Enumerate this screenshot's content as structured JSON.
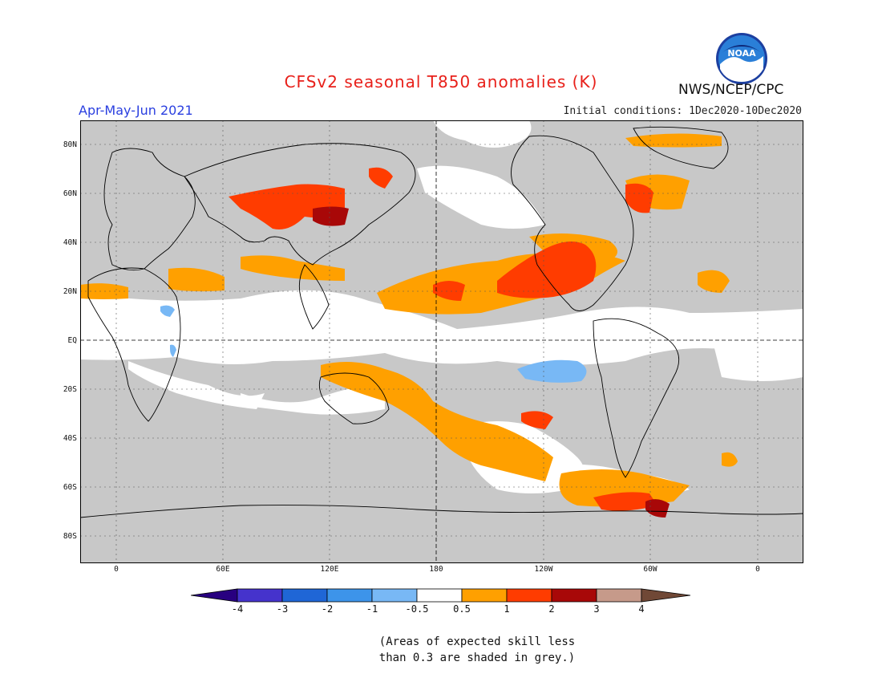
{
  "title": "CFSv2 seasonal T850 anomalies (K)",
  "period": "Apr-May-Jun 2021",
  "initial_conditions": "Initial conditions: 1Dec2020-10Dec2020",
  "agency": "NWS/NCEP/CPC",
  "logo_text": "NOAA",
  "lat_labels": [
    "80N",
    "60N",
    "40N",
    "20N",
    "EQ",
    "20S",
    "40S",
    "60S",
    "80S"
  ],
  "lon_labels": [
    "0",
    "60E",
    "120E",
    "180",
    "120W",
    "60W",
    "0"
  ],
  "colorbar": {
    "labels": [
      "-4",
      "-3",
      "-2",
      "-1",
      "-0.5",
      "0.5",
      "1",
      "2",
      "3",
      "4"
    ],
    "colors": [
      "#280080",
      "#4533cc",
      "#1f66d6",
      "#3d94ea",
      "#78b8f5",
      "#ffffff",
      "#ffa000",
      "#ff3c00",
      "#a80808",
      "#c69a8a",
      "#704836"
    ]
  },
  "legend_colors": {
    "grey": "#c8c8c8",
    "orange": "#ffa000",
    "red": "#ff3c00",
    "darkred": "#a80808",
    "lightblue": "#78b8f5",
    "land_outline": "#000000"
  },
  "note_line1": "(Areas of expected skill less",
  "note_line2": "than 0.3 are shaded in grey.)"
}
